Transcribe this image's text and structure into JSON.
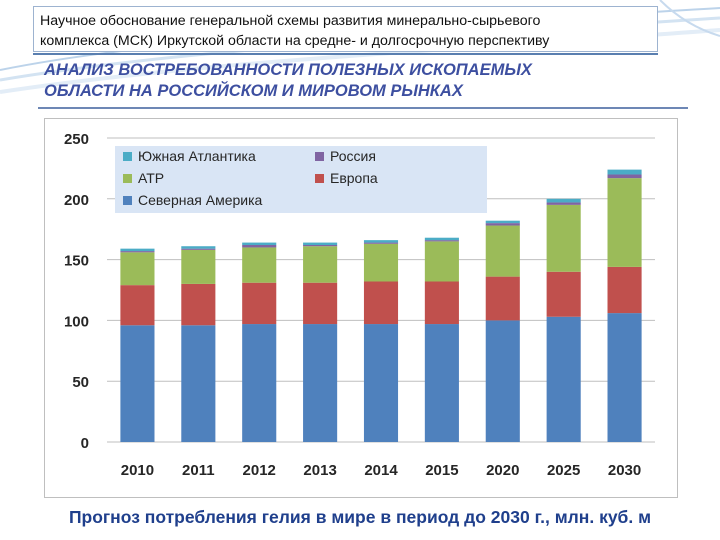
{
  "header": {
    "line1": "Научное обоснование генеральной схемы развития минерально-сырьевого",
    "line2": "комплекса (МСК) Иркутской области на средне- и долгосрочную перспективу"
  },
  "subtitle": {
    "line1": "АНАЛИЗ ВОСТРЕБОВАННОСТИ ПОЛЕЗНЫХ ИСКОПАЕМЫХ",
    "line2": "ОБЛАСТИ НА РОССИЙСКОМ И МИРОВОМ РЫНКАХ"
  },
  "caption": "Прогноз потребления гелия в мире в период до 2030 г., млн. куб. м",
  "chart_data": {
    "type": "bar",
    "stacked": true,
    "title": "",
    "xlabel": "",
    "ylabel": "",
    "ylim": [
      0,
      250
    ],
    "yticks": [
      0,
      50,
      100,
      150,
      200,
      250
    ],
    "grid": true,
    "legend_position": "top-left",
    "categories": [
      "2010",
      "2011",
      "2012",
      "2013",
      "2014",
      "2015",
      "2020",
      "2025",
      "2030"
    ],
    "series": [
      {
        "name": "Северная Америка",
        "color": "#4f81bd",
        "values": [
          96,
          96,
          97,
          97,
          97,
          97,
          100,
          103,
          106
        ]
      },
      {
        "name": "Европа",
        "color": "#c0504d",
        "values": [
          33,
          34,
          34,
          34,
          35,
          35,
          36,
          37,
          38
        ]
      },
      {
        "name": "АТР",
        "color": "#9bbb59",
        "values": [
          27,
          28,
          29,
          30,
          31,
          33,
          42,
          55,
          73
        ]
      },
      {
        "name": "Россия",
        "color": "#8064a2",
        "values": [
          1,
          1,
          2,
          1,
          1,
          1,
          2,
          2,
          3
        ]
      },
      {
        "name": "Южная Атлантика",
        "color": "#4bacc6",
        "values": [
          2,
          2,
          2,
          2,
          2,
          2,
          2,
          3,
          4
        ]
      }
    ],
    "legend": [
      {
        "name": "Южная Атлантика",
        "color": "#4bacc6"
      },
      {
        "name": "Россия",
        "color": "#8064a2"
      },
      {
        "name": "АТР",
        "color": "#9bbb59"
      },
      {
        "name": "Европа",
        "color": "#c0504d"
      },
      {
        "name": "Северная Америка",
        "color": "#4f81bd"
      }
    ]
  }
}
